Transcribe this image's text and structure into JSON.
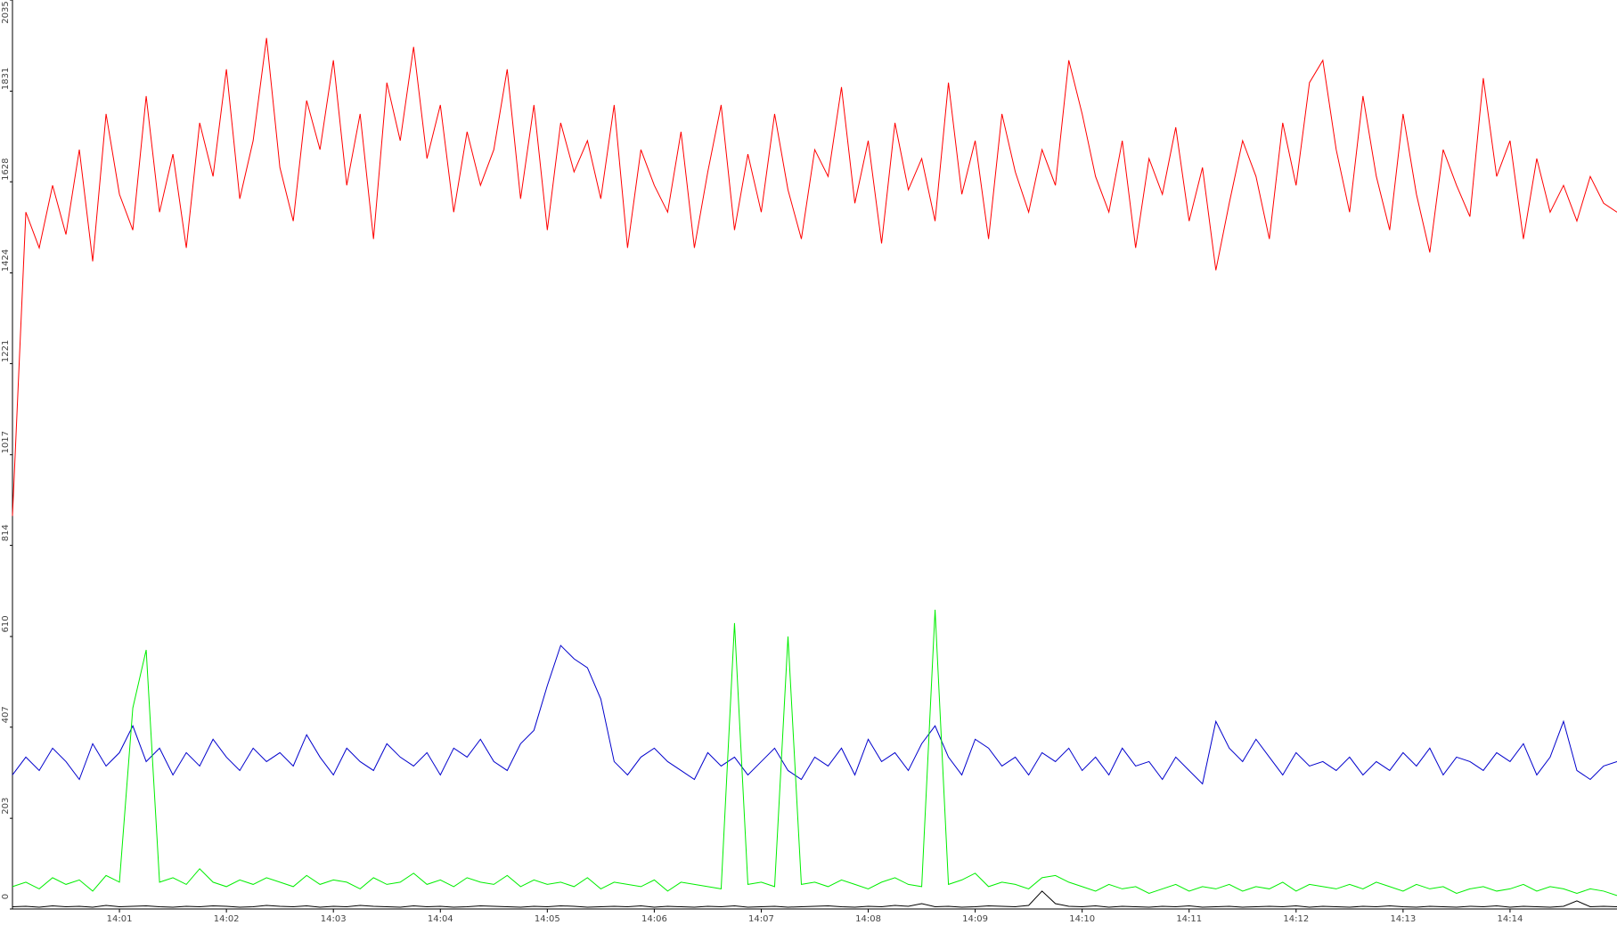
{
  "chart_data": {
    "type": "line",
    "x": [
      0,
      0.125,
      0.25,
      0.375,
      0.5,
      0.625,
      0.75,
      0.875,
      1,
      1.125,
      1.25,
      1.375,
      1.5,
      1.625,
      1.75,
      1.875,
      2,
      2.125,
      2.25,
      2.375,
      2.5,
      2.625,
      2.75,
      2.875,
      3,
      3.125,
      3.25,
      3.375,
      3.5,
      3.625,
      3.75,
      3.875,
      4,
      4.125,
      4.25,
      4.375,
      4.5,
      4.625,
      4.75,
      4.875,
      5,
      5.125,
      5.25,
      5.375,
      5.5,
      5.625,
      5.75,
      5.875,
      6,
      6.125,
      6.25,
      6.375,
      6.5,
      6.625,
      6.75,
      6.875,
      7,
      7.125,
      7.25,
      7.375,
      7.5,
      7.625,
      7.75,
      7.875,
      8,
      8.125,
      8.25,
      8.375,
      8.5,
      8.625,
      8.75,
      8.875,
      9,
      9.125,
      9.25,
      9.375,
      9.5,
      9.625,
      9.75,
      9.875,
      10,
      10.125,
      10.25,
      10.375,
      10.5,
      10.625,
      10.75,
      10.875,
      11,
      11.125,
      11.25,
      11.375,
      11.5,
      11.625,
      11.75,
      11.875,
      12,
      12.125,
      12.25,
      12.375,
      12.5,
      12.625,
      12.75,
      12.875,
      13,
      13.125,
      13.25,
      13.375,
      13.5,
      13.625,
      13.75,
      13.875,
      14,
      14.125,
      14.25,
      14.375,
      14.5,
      14.625,
      14.75,
      14.875,
      15
    ],
    "series": [
      {
        "color": "#ff0000",
        "values": [
          880,
          1560,
          1480,
          1620,
          1510,
          1700,
          1450,
          1780,
          1600,
          1520,
          1820,
          1560,
          1690,
          1480,
          1760,
          1640,
          1880,
          1590,
          1720,
          1950,
          1660,
          1540,
          1810,
          1700,
          1900,
          1620,
          1780,
          1500,
          1850,
          1720,
          1930,
          1680,
          1800,
          1560,
          1740,
          1620,
          1700,
          1880,
          1590,
          1800,
          1520,
          1760,
          1650,
          1720,
          1590,
          1800,
          1480,
          1700,
          1620,
          1560,
          1740,
          1480,
          1650,
          1800,
          1520,
          1690,
          1560,
          1780,
          1610,
          1500,
          1700,
          1640,
          1840,
          1580,
          1720,
          1490,
          1760,
          1610,
          1680,
          1540,
          1850,
          1600,
          1720,
          1500,
          1780,
          1650,
          1560,
          1700,
          1620,
          1900,
          1780,
          1640,
          1560,
          1720,
          1480,
          1680,
          1600,
          1750,
          1540,
          1660,
          1430,
          1580,
          1720,
          1640,
          1500,
          1760,
          1620,
          1850,
          1900,
          1700,
          1560,
          1820,
          1640,
          1520,
          1780,
          1600,
          1470,
          1700,
          1620,
          1550,
          1860,
          1640,
          1720,
          1500,
          1680,
          1560,
          1620,
          1540,
          1640,
          1580,
          1560
        ]
      },
      {
        "color": "#0000cc",
        "values": [
          300,
          340,
          310,
          360,
          330,
          290,
          370,
          320,
          350,
          410,
          330,
          360,
          300,
          350,
          320,
          380,
          340,
          310,
          360,
          330,
          350,
          320,
          390,
          340,
          300,
          360,
          330,
          310,
          370,
          340,
          320,
          350,
          300,
          360,
          340,
          380,
          330,
          310,
          370,
          400,
          500,
          590,
          560,
          540,
          470,
          330,
          300,
          340,
          360,
          330,
          310,
          290,
          350,
          320,
          340,
          300,
          330,
          360,
          310,
          290,
          340,
          320,
          360,
          300,
          380,
          330,
          350,
          310,
          370,
          410,
          340,
          300,
          380,
          360,
          320,
          340,
          300,
          350,
          330,
          360,
          310,
          340,
          300,
          360,
          320,
          330,
          290,
          340,
          310,
          280,
          420,
          360,
          330,
          380,
          340,
          300,
          350,
          320,
          330,
          310,
          340,
          300,
          330,
          310,
          350,
          320,
          360,
          300,
          340,
          330,
          310,
          350,
          330,
          370,
          300,
          340,
          420,
          310,
          290,
          320,
          330
        ]
      },
      {
        "color": "#00ee00",
        "values": [
          50,
          60,
          45,
          70,
          55,
          65,
          40,
          75,
          60,
          450,
          580,
          60,
          70,
          55,
          90,
          60,
          50,
          65,
          55,
          70,
          60,
          50,
          75,
          55,
          65,
          60,
          45,
          70,
          55,
          60,
          80,
          55,
          65,
          50,
          70,
          60,
          55,
          75,
          50,
          65,
          55,
          60,
          50,
          70,
          45,
          60,
          55,
          50,
          65,
          40,
          60,
          55,
          50,
          45,
          640,
          55,
          60,
          50,
          610,
          55,
          60,
          50,
          65,
          55,
          45,
          60,
          70,
          55,
          50,
          670,
          55,
          65,
          80,
          50,
          60,
          55,
          45,
          70,
          75,
          60,
          50,
          40,
          55,
          45,
          50,
          35,
          45,
          55,
          40,
          50,
          45,
          55,
          40,
          50,
          45,
          60,
          40,
          55,
          50,
          45,
          55,
          45,
          60,
          50,
          40,
          55,
          45,
          50,
          35,
          45,
          50,
          40,
          45,
          55,
          40,
          50,
          45,
          35,
          45,
          40,
          30
        ]
      },
      {
        "color": "#000000",
        "values": [
          5,
          6,
          4,
          7,
          5,
          6,
          4,
          8,
          5,
          6,
          7,
          5,
          4,
          6,
          5,
          7,
          6,
          4,
          5,
          8,
          6,
          5,
          7,
          4,
          6,
          5,
          8,
          6,
          5,
          4,
          7,
          5,
          6,
          4,
          5,
          7,
          6,
          5,
          4,
          6,
          5,
          7,
          6,
          4,
          5,
          6,
          5,
          7,
          4,
          6,
          5,
          4,
          6,
          5,
          7,
          4,
          5,
          6,
          4,
          5,
          6,
          7,
          5,
          4,
          6,
          5,
          8,
          6,
          12,
          5,
          6,
          4,
          5,
          7,
          6,
          5,
          8,
          40,
          12,
          6,
          5,
          7,
          4,
          6,
          5,
          4,
          6,
          5,
          7,
          4,
          5,
          6,
          4,
          5,
          6,
          5,
          7,
          4,
          6,
          5,
          4,
          6,
          5,
          7,
          5,
          4,
          6,
          5,
          4,
          6,
          5,
          7,
          4,
          6,
          5,
          4,
          6,
          18,
          5,
          6,
          5
        ]
      }
    ],
    "xlim": [
      0,
      15
    ],
    "xticks": [
      {
        "value": 1,
        "label": "14:01"
      },
      {
        "value": 2,
        "label": "14:02"
      },
      {
        "value": 3,
        "label": "14:03"
      },
      {
        "value": 4,
        "label": "14:04"
      },
      {
        "value": 5,
        "label": "14:05"
      },
      {
        "value": 6,
        "label": "14:06"
      },
      {
        "value": 7,
        "label": "14:07"
      },
      {
        "value": 8,
        "label": "14:08"
      },
      {
        "value": 9,
        "label": "14:09"
      },
      {
        "value": 10,
        "label": "14:10"
      },
      {
        "value": 11,
        "label": "14:11"
      },
      {
        "value": 12,
        "label": "14:12"
      },
      {
        "value": 13,
        "label": "14:13"
      },
      {
        "value": 14,
        "label": "14:14"
      }
    ],
    "ylim": [
      0,
      2035
    ],
    "yticks": [
      0,
      203,
      407,
      610,
      814,
      1017,
      1221,
      1424,
      1628,
      1831,
      2035
    ]
  }
}
